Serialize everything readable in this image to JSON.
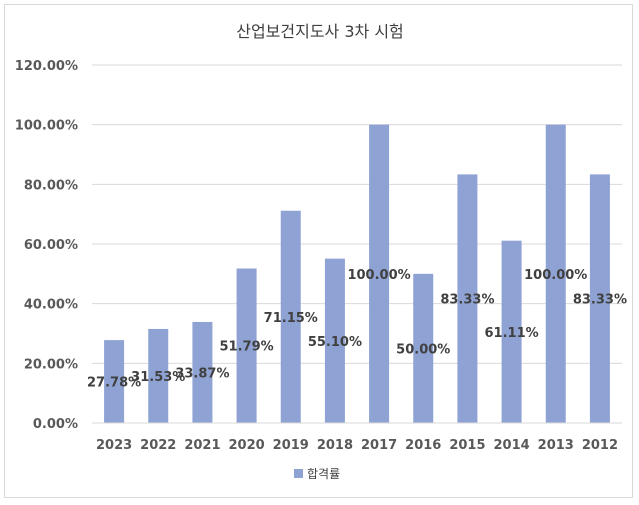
{
  "chart_data": {
    "type": "bar",
    "title": "산업보건지도사 3차 시험",
    "categories": [
      "2023",
      "2022",
      "2021",
      "2020",
      "2019",
      "2018",
      "2017",
      "2016",
      "2015",
      "2014",
      "2013",
      "2012"
    ],
    "series": [
      {
        "name": "합격률",
        "values": [
          27.78,
          31.53,
          33.87,
          51.79,
          71.15,
          55.1,
          100.0,
          50.0,
          83.33,
          61.11,
          100.0,
          83.33
        ],
        "labels": [
          "27.78%",
          "31.53%",
          "33.87%",
          "51.79%",
          "71.15%",
          "55.10%",
          "100.00%",
          "50.00%",
          "83.33%",
          "61.11%",
          "100.00%",
          "83.33%"
        ],
        "color": "#8ea2d3"
      }
    ],
    "ylim": [
      0,
      120
    ],
    "yticks": [
      "0.00%",
      "20.00%",
      "40.00%",
      "60.00%",
      "80.00%",
      "100.00%",
      "120.00%"
    ],
    "grid": true,
    "legend_position": "bottom",
    "xlabel": "",
    "ylabel": ""
  }
}
